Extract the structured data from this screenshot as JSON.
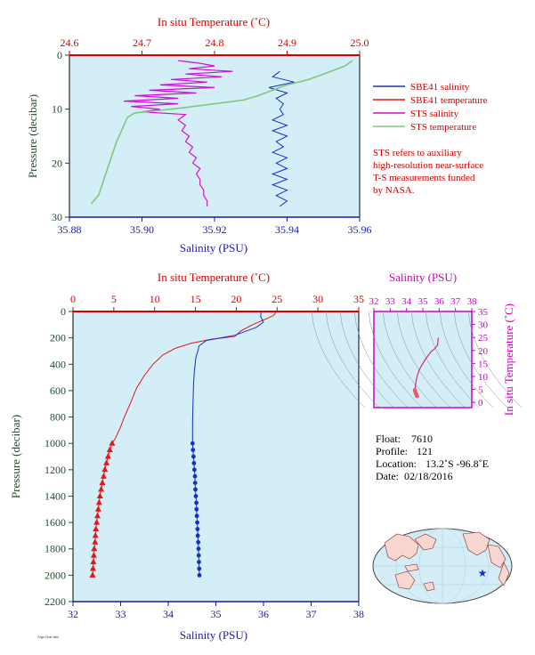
{
  "colors": {
    "salinity_axis": "#1a1aa6",
    "temperature_axis": "#d80000",
    "pressure_axis": "#1d4d2a",
    "ts_axis": "#cc00cc",
    "plot_bg": "#d4eef8",
    "sbe_salinity": "#1530c8",
    "sbe_temperature": "#e01818",
    "sts_salinity": "#d010d0",
    "sts_temperature": "#80c880"
  },
  "info": {
    "float_label": "Float:",
    "float_value": "7610",
    "profile_label": "Profile:",
    "profile_value": "121",
    "location_label": "Location:",
    "location_value": "13.2˚S  -96.8˚E",
    "date_label": "Date:",
    "date_value": "02/18/2016"
  },
  "footer_text": "Argo float data",
  "chart_data": [
    {
      "type": "line",
      "id": "near-surface",
      "top_axis_label": "In situ Temperature (˚C)",
      "top_ticks": [
        "24.6",
        "24.7",
        "24.8",
        "24.9",
        "25.0"
      ],
      "temp_range": [
        24.6,
        25.0
      ],
      "bottom_axis_label": "Salinity (PSU)",
      "bottom_ticks": [
        "35.88",
        "35.90",
        "35.92",
        "35.94",
        "35.96"
      ],
      "sal_range": [
        35.88,
        35.96
      ],
      "left_axis_label": "Pressure (decibar)",
      "left_ticks": [
        "0",
        "10",
        "20",
        "30"
      ],
      "pressure_range": [
        0,
        30
      ],
      "legend": [
        {
          "name": "SBE41 salinity",
          "color_key": "sbe_salinity"
        },
        {
          "name": "SBE41 temperature",
          "color_key": "sbe_temperature"
        },
        {
          "name": "STS salinity",
          "color_key": "sts_salinity"
        },
        {
          "name": "STS temperature",
          "color_key": "sts_temperature"
        }
      ],
      "note_lines": [
        "STS refers to auxiliary",
        "high-resolution near-surface",
        "T-S measurements funded",
        "by NASA."
      ],
      "series": {
        "sts_temperature": [
          [
            24.99,
            1
          ],
          [
            24.98,
            2
          ],
          [
            24.96,
            3
          ],
          [
            24.94,
            4
          ],
          [
            24.93,
            4.5
          ],
          [
            24.9,
            5.5
          ],
          [
            24.88,
            6.5
          ],
          [
            24.86,
            7.5
          ],
          [
            24.84,
            8.3
          ],
          [
            24.8,
            9
          ],
          [
            24.76,
            9.7
          ],
          [
            24.72,
            10.3
          ],
          [
            24.69,
            10.7
          ],
          [
            24.68,
            11.5
          ],
          [
            24.675,
            13
          ],
          [
            24.67,
            14.5
          ],
          [
            24.665,
            16
          ],
          [
            24.66,
            18
          ],
          [
            24.655,
            20
          ],
          [
            24.65,
            22
          ],
          [
            24.645,
            24
          ],
          [
            24.64,
            26
          ],
          [
            24.63,
            27.5
          ]
        ],
        "sts_salinity": [
          [
            35.91,
            1
          ],
          [
            35.916,
            1.5
          ],
          [
            35.92,
            2
          ],
          [
            35.913,
            2.5
          ],
          [
            35.925,
            3
          ],
          [
            35.912,
            3.5
          ],
          [
            35.922,
            4
          ],
          [
            35.908,
            4.5
          ],
          [
            35.918,
            5
          ],
          [
            35.905,
            5.5
          ],
          [
            35.92,
            6
          ],
          [
            35.902,
            6.5
          ],
          [
            35.915,
            7
          ],
          [
            35.898,
            7.5
          ],
          [
            35.91,
            8
          ],
          [
            35.895,
            8.5
          ],
          [
            35.91,
            9
          ],
          [
            35.897,
            9.5
          ],
          [
            35.905,
            10
          ],
          [
            35.9,
            10.5
          ],
          [
            35.912,
            11
          ],
          [
            35.91,
            12
          ],
          [
            35.912,
            13
          ],
          [
            35.911,
            14
          ],
          [
            35.913,
            15
          ],
          [
            35.912,
            16
          ],
          [
            35.914,
            17
          ],
          [
            35.913,
            18
          ],
          [
            35.915,
            19
          ],
          [
            35.914,
            20
          ],
          [
            35.916,
            21
          ],
          [
            35.915,
            22
          ],
          [
            35.916,
            23
          ],
          [
            35.916,
            24
          ],
          [
            35.917,
            25
          ],
          [
            35.917,
            26
          ],
          [
            35.918,
            27
          ],
          [
            35.918,
            28
          ]
        ],
        "sbe_salinity": [
          [
            35.938,
            3
          ],
          [
            35.936,
            4
          ],
          [
            35.942,
            5
          ],
          [
            35.935,
            6
          ],
          [
            35.94,
            7
          ],
          [
            35.937,
            8
          ],
          [
            35.939,
            9
          ],
          [
            35.938,
            10
          ],
          [
            35.939,
            11
          ],
          [
            35.936,
            12
          ],
          [
            35.94,
            13
          ],
          [
            35.936,
            14
          ],
          [
            35.94,
            15
          ],
          [
            35.937,
            16
          ],
          [
            35.939,
            17
          ],
          [
            35.936,
            18
          ],
          [
            35.94,
            19
          ],
          [
            35.937,
            20
          ],
          [
            35.94,
            21
          ],
          [
            35.936,
            22
          ],
          [
            35.94,
            23
          ],
          [
            35.936,
            24
          ],
          [
            35.94,
            25
          ],
          [
            35.937,
            26
          ],
          [
            35.94,
            27
          ],
          [
            35.938,
            28
          ]
        ]
      }
    },
    {
      "type": "line",
      "id": "full-profile",
      "top_axis_label": "In situ Temperature (˚C)",
      "top_ticks": [
        "0",
        "5",
        "10",
        "15",
        "20",
        "25",
        "30",
        "35"
      ],
      "temp_range": [
        0,
        35
      ],
      "bottom_axis_label": "Salinity (PSU)",
      "bottom_ticks": [
        "32",
        "33",
        "34",
        "35",
        "36",
        "37",
        "38"
      ],
      "sal_range": [
        32,
        38
      ],
      "left_axis_label": "Pressure (decibar)",
      "left_ticks": [
        "0",
        "200",
        "400",
        "600",
        "800",
        "1000",
        "1200",
        "1400",
        "1600",
        "1800",
        "2000",
        "2200"
      ],
      "pressure_range": [
        0,
        2200
      ],
      "series": {
        "temperature": [
          [
            24.9,
            0
          ],
          [
            24.6,
            30
          ],
          [
            23.5,
            60
          ],
          [
            22,
            100
          ],
          [
            20.5,
            150
          ],
          [
            19.8,
            190
          ],
          [
            17,
            210
          ],
          [
            14.5,
            240
          ],
          [
            12.5,
            280
          ],
          [
            11,
            330
          ],
          [
            9.8,
            400
          ],
          [
            8.8,
            480
          ],
          [
            7.8,
            580
          ],
          [
            7,
            700
          ],
          [
            6.3,
            800
          ],
          [
            5.8,
            880
          ],
          [
            5.2,
            960
          ],
          [
            4.8,
            1000
          ]
        ],
        "salinity": [
          [
            35.95,
            0
          ],
          [
            35.94,
            40
          ],
          [
            36.0,
            80
          ],
          [
            35.85,
            120
          ],
          [
            35.4,
            180
          ],
          [
            34.8,
            220
          ],
          [
            34.65,
            260
          ],
          [
            34.62,
            300
          ],
          [
            34.58,
            350
          ],
          [
            34.55,
            450
          ],
          [
            34.53,
            550
          ],
          [
            34.52,
            700
          ],
          [
            34.51,
            850
          ],
          [
            34.51,
            1000
          ]
        ],
        "temperature_points": [
          [
            4.8,
            1000
          ],
          [
            4.5,
            1050
          ],
          [
            4.3,
            1100
          ],
          [
            4.1,
            1150
          ],
          [
            3.9,
            1200
          ],
          [
            3.75,
            1250
          ],
          [
            3.6,
            1300
          ],
          [
            3.45,
            1350
          ],
          [
            3.3,
            1400
          ],
          [
            3.2,
            1450
          ],
          [
            3.1,
            1500
          ],
          [
            3.0,
            1550
          ],
          [
            2.9,
            1600
          ],
          [
            2.8,
            1650
          ],
          [
            2.75,
            1700
          ],
          [
            2.7,
            1750
          ],
          [
            2.6,
            1800
          ],
          [
            2.55,
            1850
          ],
          [
            2.5,
            1900
          ],
          [
            2.45,
            1950
          ],
          [
            2.4,
            2000
          ]
        ],
        "salinity_points": [
          [
            34.51,
            1000
          ],
          [
            34.52,
            1050
          ],
          [
            34.53,
            1100
          ],
          [
            34.54,
            1150
          ],
          [
            34.55,
            1200
          ],
          [
            34.56,
            1250
          ],
          [
            34.565,
            1300
          ],
          [
            34.57,
            1350
          ],
          [
            34.58,
            1400
          ],
          [
            34.59,
            1450
          ],
          [
            34.595,
            1500
          ],
          [
            34.6,
            1550
          ],
          [
            34.61,
            1600
          ],
          [
            34.615,
            1650
          ],
          [
            34.62,
            1700
          ],
          [
            34.63,
            1750
          ],
          [
            34.635,
            1800
          ],
          [
            34.64,
            1850
          ],
          [
            34.645,
            1900
          ],
          [
            34.65,
            1950
          ],
          [
            34.655,
            2000
          ]
        ]
      }
    },
    {
      "type": "scatter",
      "id": "t-s-diagram",
      "top_axis_label": "Salinity (PSU)",
      "top_ticks": [
        "32",
        "33",
        "34",
        "35",
        "36",
        "37",
        "38"
      ],
      "sal_range": [
        32,
        38
      ],
      "right_axis_label": "In situ Temperature (˚C)",
      "right_ticks": [
        "0",
        "5",
        "10",
        "15",
        "20",
        "25",
        "30",
        "35"
      ],
      "temp_range": [
        -2,
        35
      ],
      "series": {
        "ts_line": [
          [
            35.95,
            24.9
          ],
          [
            35.9,
            22
          ],
          [
            35.7,
            20.5
          ],
          [
            35.5,
            19.5
          ],
          [
            35.2,
            17
          ],
          [
            34.9,
            14
          ],
          [
            34.75,
            12
          ],
          [
            34.65,
            10
          ],
          [
            34.58,
            8
          ],
          [
            34.55,
            6.5
          ],
          [
            34.52,
            5
          ],
          [
            34.51,
            4.8
          ]
        ],
        "ts_points": [
          [
            34.51,
            4.8
          ],
          [
            34.53,
            4.3
          ],
          [
            34.55,
            3.9
          ],
          [
            34.57,
            3.6
          ],
          [
            34.59,
            3.3
          ],
          [
            34.6,
            3.0
          ],
          [
            34.62,
            2.8
          ],
          [
            34.63,
            2.6
          ],
          [
            34.645,
            2.5
          ],
          [
            34.655,
            2.4
          ]
        ]
      }
    }
  ]
}
